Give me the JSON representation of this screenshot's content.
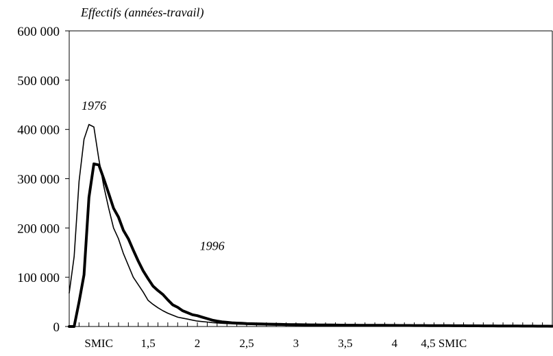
{
  "chart_data": {
    "type": "line",
    "ylabel": "Effectifs (années-travail)",
    "xlabel": "",
    "xlim": [
      0.7,
      5.6
    ],
    "ylim": [
      0,
      600000
    ],
    "grid": false,
    "y_ticks": [
      {
        "value": 0,
        "label": "0"
      },
      {
        "value": 100000,
        "label": "100 000"
      },
      {
        "value": 200000,
        "label": "200 000"
      },
      {
        "value": 300000,
        "label": "300 000"
      },
      {
        "value": 400000,
        "label": "400 000"
      },
      {
        "value": 500000,
        "label": "500 000"
      },
      {
        "value": 600000,
        "label": "600 000"
      }
    ],
    "x_ticks": [
      {
        "value": 1.0,
        "label": "SMIC"
      },
      {
        "value": 1.5,
        "label": "1,5"
      },
      {
        "value": 2.0,
        "label": "2"
      },
      {
        "value": 2.5,
        "label": "2,5"
      },
      {
        "value": 3.0,
        "label": "3"
      },
      {
        "value": 3.5,
        "label": "3,5"
      },
      {
        "value": 4.0,
        "label": "4"
      },
      {
        "value": 4.5,
        "label": "4,5 SMIC"
      }
    ],
    "series": [
      {
        "name": "1976",
        "color": "#000000",
        "x": [
          0.7,
          0.75,
          0.8,
          0.85,
          0.9,
          0.95,
          1.0,
          1.05,
          1.1,
          1.15,
          1.2,
          1.25,
          1.3,
          1.35,
          1.4,
          1.45,
          1.5,
          1.55,
          1.6,
          1.65,
          1.7,
          1.75,
          1.8,
          1.85,
          1.9,
          1.95,
          2.0,
          2.05,
          2.1,
          2.15,
          2.2,
          2.25,
          2.3,
          2.35,
          2.4,
          2.45,
          2.5,
          2.55,
          2.6,
          2.65,
          2.7,
          2.75,
          2.8,
          2.85,
          2.9,
          2.95,
          3.0,
          3.05,
          3.1,
          3.15,
          3.2,
          3.25,
          3.3,
          3.35,
          3.4,
          3.45,
          3.5,
          3.55,
          3.6,
          3.65,
          3.7,
          3.75,
          3.8,
          3.85,
          3.9,
          3.95,
          4.0,
          4.05,
          4.1,
          4.15,
          4.2,
          4.25,
          4.3,
          4.35,
          4.4,
          4.45,
          4.5,
          4.55,
          4.6,
          4.65,
          4.7,
          4.75,
          4.8,
          4.85,
          4.9,
          4.95,
          5.0,
          5.05,
          5.1,
          5.15,
          5.2,
          5.25,
          5.3,
          5.35,
          5.4,
          5.45,
          5.5,
          5.55,
          5.6
        ],
        "values": [
          68000,
          142000,
          295000,
          380000,
          410000,
          405000,
          340000,
          285000,
          240000,
          200000,
          178000,
          148000,
          124000,
          100000,
          85000,
          70000,
          53000,
          45000,
          38000,
          32000,
          27000,
          23000,
          19000,
          17000,
          15000,
          13000,
          11000,
          10000,
          9000,
          8000,
          7200,
          6500,
          6000,
          5500,
          5000,
          4600,
          4200,
          3900,
          3600,
          3300,
          3100,
          2900,
          2700,
          2500,
          2400,
          2300,
          2200,
          2100,
          2000,
          1900,
          1800,
          1700,
          1650,
          1600,
          1550,
          1500,
          1450,
          1400,
          1350,
          1300,
          1250,
          1200,
          1150,
          1100,
          1050,
          1000,
          950,
          900,
          870,
          840,
          810,
          780,
          750,
          720,
          700,
          680,
          660,
          640,
          620,
          600,
          580,
          560,
          540,
          520,
          500,
          480,
          460,
          440,
          420,
          400,
          380,
          360,
          340,
          320,
          300,
          280,
          260,
          240,
          220
        ],
        "width": 1.6
      },
      {
        "name": "1996",
        "color": "#000000",
        "x": [
          0.7,
          0.75,
          0.8,
          0.85,
          0.9,
          0.95,
          1.0,
          1.05,
          1.1,
          1.15,
          1.2,
          1.25,
          1.3,
          1.35,
          1.4,
          1.45,
          1.5,
          1.55,
          1.6,
          1.65,
          1.7,
          1.75,
          1.8,
          1.85,
          1.9,
          1.95,
          2.0,
          2.05,
          2.1,
          2.15,
          2.2,
          2.25,
          2.3,
          2.35,
          2.4,
          2.45,
          2.5,
          2.55,
          2.6,
          2.65,
          2.7,
          2.75,
          2.8,
          2.85,
          2.9,
          2.95,
          3.0,
          3.05,
          3.1,
          3.15,
          3.2,
          3.25,
          3.3,
          3.35,
          3.4,
          3.45,
          3.5,
          3.55,
          3.6,
          3.65,
          3.7,
          3.75,
          3.8,
          3.85,
          3.9,
          3.95,
          4.0,
          4.05,
          4.1,
          4.15,
          4.2,
          4.25,
          4.3,
          4.35,
          4.4,
          4.45,
          4.5,
          4.55,
          4.6,
          4.65,
          4.7,
          4.75,
          4.8,
          4.85,
          4.9,
          4.95,
          5.0,
          5.05,
          5.1,
          5.15,
          5.2,
          5.25,
          5.3,
          5.35,
          5.4,
          5.45,
          5.5,
          5.55,
          5.6
        ],
        "values": [
          0,
          0,
          50000,
          105000,
          262000,
          330000,
          328000,
          300000,
          270000,
          240000,
          222000,
          195000,
          178000,
          155000,
          133000,
          113000,
          97000,
          82000,
          73000,
          65000,
          54000,
          44000,
          39000,
          32000,
          28000,
          24000,
          22000,
          19000,
          16000,
          13000,
          11000,
          9500,
          8500,
          7500,
          7000,
          6500,
          6000,
          5700,
          5400,
          5100,
          4900,
          4700,
          4500,
          4300,
          4100,
          3900,
          3700,
          3600,
          3500,
          3400,
          3300,
          3200,
          3100,
          3000,
          2900,
          2800,
          2700,
          2650,
          2600,
          2550,
          2500,
          2450,
          2400,
          2350,
          2300,
          2250,
          2200,
          2150,
          2100,
          2050,
          2000,
          1950,
          1900,
          1850,
          1800,
          1750,
          1700,
          1650,
          1600,
          1550,
          1500,
          1450,
          1400,
          1350,
          1300,
          1250,
          1200,
          1150,
          1100,
          1050,
          1000,
          950,
          900,
          850,
          800,
          750,
          700,
          650,
          600
        ],
        "width": 4
      }
    ],
    "annotations": [
      {
        "text": "1976",
        "x": 0.95,
        "y": 440000
      },
      {
        "text": "1996",
        "x": 2.15,
        "y": 155000
      }
    ]
  }
}
